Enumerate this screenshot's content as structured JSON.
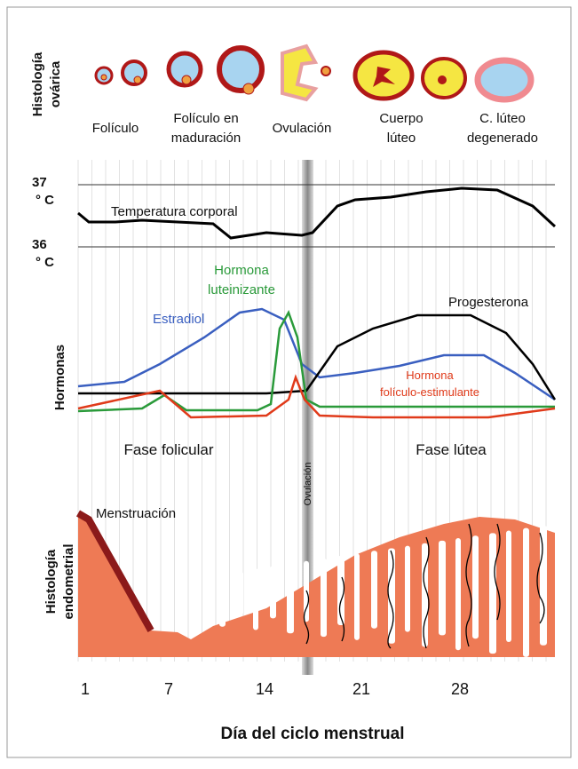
{
  "ovarian_histology": {
    "title": [
      "Histología",
      "ovárica"
    ],
    "stages": [
      [
        "Folículo"
      ],
      [
        "Folículo en",
        "maduración"
      ],
      [
        "Ovulación"
      ],
      [
        "Cuerpo",
        "lúteo"
      ],
      [
        "C. lúteo",
        "degenerado"
      ]
    ]
  },
  "temperature": {
    "label": "Temperatura corporal",
    "high": "37",
    "low": "36",
    "unit": "° C"
  },
  "hormones": {
    "title": "Hormonas",
    "estradiol": "Estradiol",
    "lh": [
      "Hormona",
      "luteinizante"
    ],
    "progesterone": "Progesterona",
    "fsh": [
      "Hormona",
      "folículo-estimulante"
    ]
  },
  "phases": {
    "follicular": "Fase folicular",
    "luteal": "Fase lútea",
    "ovulation": "Ovulación"
  },
  "endometrium": {
    "title": [
      "Histología",
      "endometrial"
    ],
    "menstruation": "Menstruación"
  },
  "x_axis": {
    "title": "Día del ciclo menstrual",
    "days": [
      "1",
      "7",
      "14",
      "21",
      "28"
    ]
  }
}
